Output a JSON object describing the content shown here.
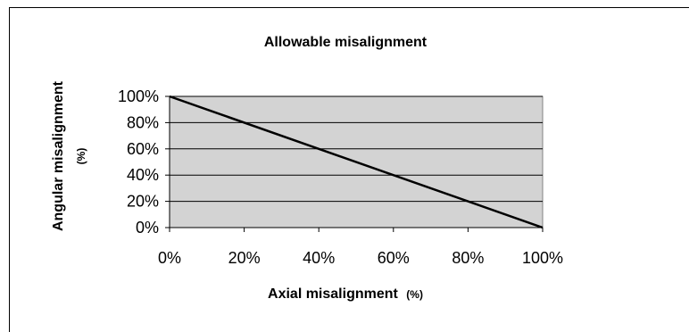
{
  "chart_data": {
    "type": "line",
    "title": "Allowable misalignment",
    "xlabel": "Axial misalignment",
    "xlabel_unit": "(%)",
    "ylabel": "Angular misalignment",
    "ylabel_unit": "(%)",
    "x_ticks": [
      "0%",
      "20%",
      "40%",
      "60%",
      "80%",
      "100%"
    ],
    "y_ticks": [
      "0%",
      "20%",
      "40%",
      "60%",
      "80%",
      "100%"
    ],
    "xlim": [
      0,
      100
    ],
    "ylim": [
      0,
      100
    ],
    "grid": "horizontal",
    "legend": "none",
    "series": [
      {
        "x": [
          0,
          100
        ],
        "values": [
          100,
          0
        ]
      }
    ],
    "colors": {
      "plot_background": "#d3d3d3",
      "line": "#000000",
      "grid": "#000000"
    }
  }
}
